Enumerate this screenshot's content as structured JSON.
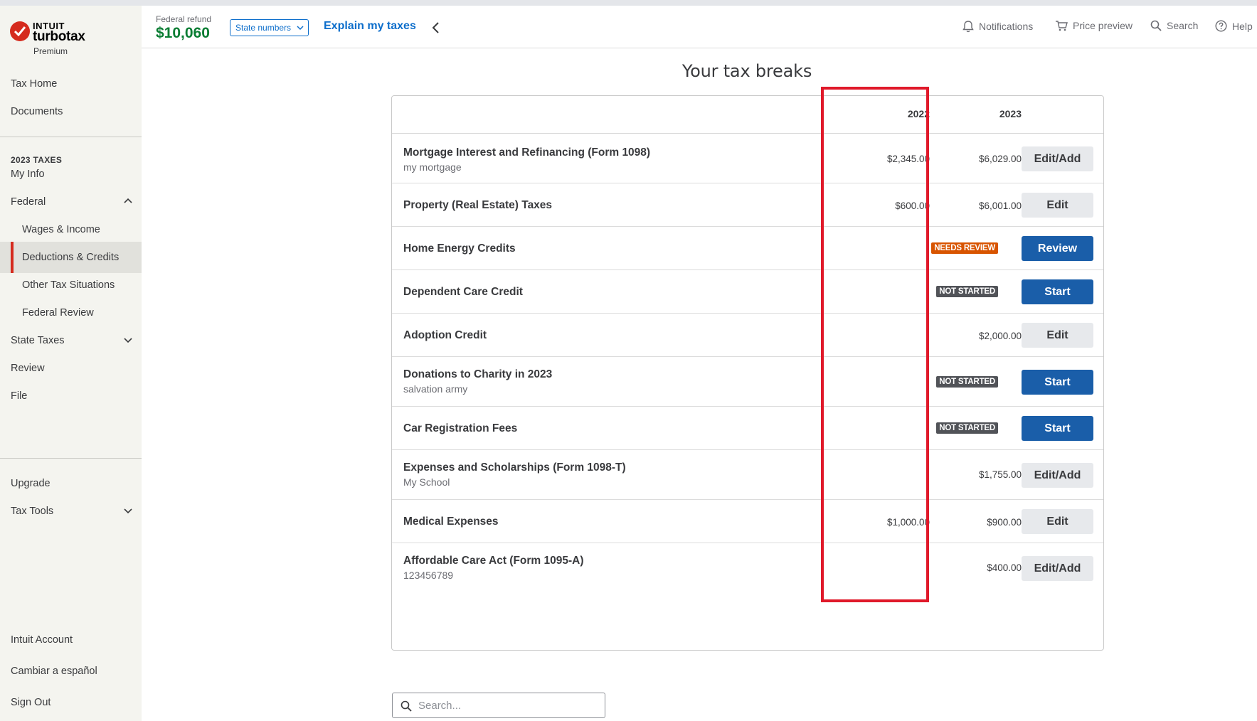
{
  "brand": {
    "company": "INTUIT",
    "product": "turbotax",
    "edition": "Premium"
  },
  "header": {
    "refund_label": "Federal refund",
    "refund_amount": "$10,060",
    "state_numbers_label": "State numbers",
    "explain_label": "Explain my taxes",
    "notifications_label": "Notifications",
    "price_preview_label": "Price preview",
    "search_label": "Search",
    "help_label": "Help"
  },
  "sidebar": {
    "tax_home": "Tax Home",
    "documents": "Documents",
    "section_label": "2023 TAXES",
    "my_info": "My Info",
    "federal": "Federal",
    "wages_income": "Wages & Income",
    "deductions_credits": "Deductions & Credits",
    "other_tax": "Other Tax Situations",
    "federal_review": "Federal Review",
    "state_taxes": "State Taxes",
    "review": "Review",
    "file": "File",
    "upgrade": "Upgrade",
    "tax_tools": "Tax Tools",
    "intuit_account": "Intuit Account",
    "spanish": "Cambiar a español",
    "sign_out": "Sign Out"
  },
  "main": {
    "title": "Your tax breaks",
    "columns": {
      "y2022": "2022",
      "y2023": "2023"
    },
    "rows": [
      {
        "title": "Mortgage Interest and Refinancing (Form 1098)",
        "subtitle": "my mortgage",
        "y2022": "$2,345.00",
        "y2023": "$6,029.00",
        "button": "Edit/Add"
      },
      {
        "title": "Property (Real Estate) Taxes",
        "y2022": "$600.00",
        "y2023": "$6,001.00",
        "button": "Edit"
      },
      {
        "title": "Home Energy Credits",
        "badge": "NEEDS REVIEW",
        "button": "Review"
      },
      {
        "title": "Dependent Care Credit",
        "badge": "NOT STARTED",
        "button": "Start"
      },
      {
        "title": "Adoption Credit",
        "y2023": "$2,000.00",
        "button": "Edit"
      },
      {
        "title": "Donations to Charity in 2023",
        "subtitle": "salvation army",
        "badge": "NOT STARTED",
        "button": "Start"
      },
      {
        "title": "Car Registration Fees",
        "badge": "NOT STARTED",
        "button": "Start"
      },
      {
        "title": "Expenses and Scholarships (Form 1098-T)",
        "subtitle": "My School",
        "y2023": "$1,755.00",
        "button": "Edit/Add"
      },
      {
        "title": "Medical Expenses",
        "y2022": "$1,000.00",
        "y2023": "$900.00",
        "button": "Edit"
      },
      {
        "title": "Affordable Care Act (Form 1095-A)",
        "subtitle": "123456789",
        "y2023": "$400.00",
        "button": "Edit/Add"
      }
    ],
    "search_placeholder": "Search..."
  },
  "colors": {
    "brand_red": "#d52b1e",
    "link_blue": "#0d6ecb",
    "primary_button": "#1a5ea9",
    "refund_green": "#0a7d33",
    "needs_review": "#d85400",
    "not_started": "#515358",
    "highlight": "#e0192a"
  },
  "icons": [
    "check-logo-icon",
    "chevron-down-icon",
    "chevron-left-icon",
    "chevron-up-icon",
    "bell-icon",
    "cart-icon",
    "search-icon",
    "help-icon"
  ]
}
